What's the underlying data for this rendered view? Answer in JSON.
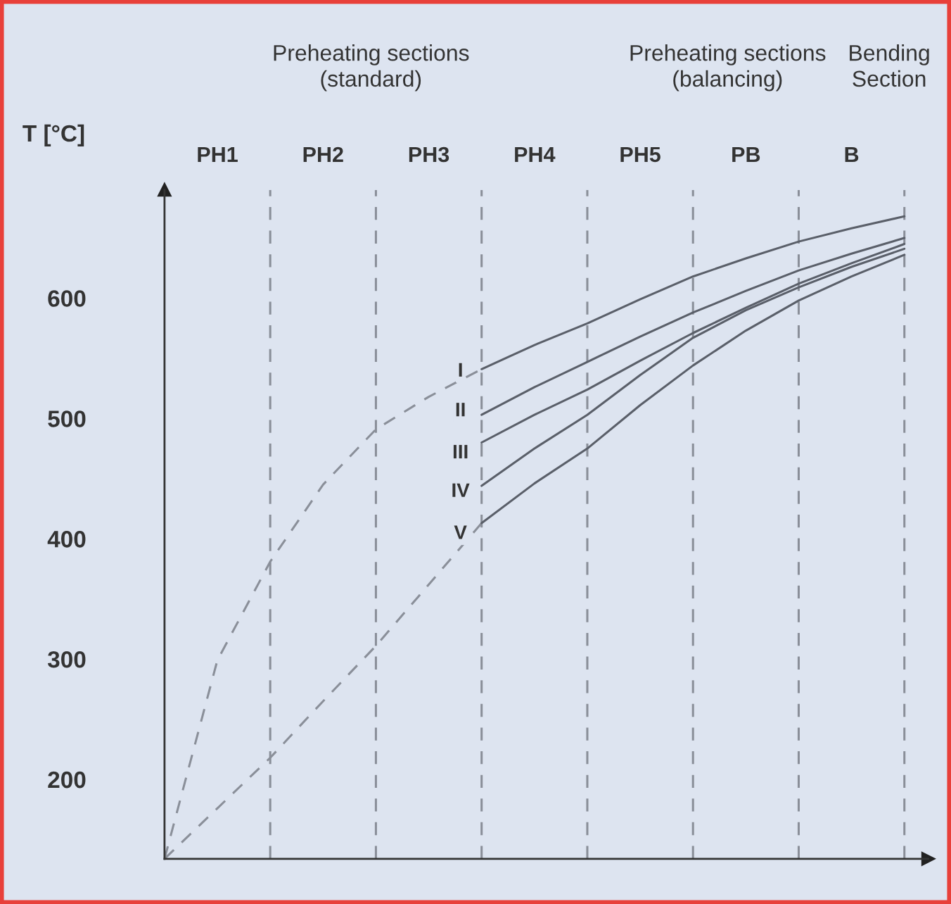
{
  "chart_data": {
    "type": "line",
    "ylabel": "T [°C]",
    "categories": [
      null,
      "PH1",
      null,
      "PH2",
      null,
      "PH3",
      null,
      "PH4",
      null,
      "PH5",
      null,
      "PB",
      null,
      "B",
      null
    ],
    "series": [
      {
        "line_style": "dashed",
        "color": "#8a8f99",
        "values": [
          134,
          299,
          381,
          445,
          491,
          518,
          541,
          null,
          null,
          null,
          null,
          null,
          null,
          null,
          null
        ]
      },
      {
        "line_style": "dashed",
        "color": "#8a8f99",
        "values": [
          134,
          176,
          218,
          265,
          311,
          362,
          413,
          null,
          null,
          null,
          null,
          null,
          null,
          null,
          null
        ]
      },
      {
        "line_style": "solid",
        "color": "#5a5f69",
        "values": [
          null,
          null,
          null,
          null,
          null,
          null,
          541,
          561,
          579,
          599,
          618,
          633,
          647,
          658,
          668
        ]
      },
      {
        "line_style": "solid",
        "color": "#5a5f69",
        "values": [
          null,
          null,
          null,
          null,
          null,
          null,
          503,
          526,
          547,
          568,
          588,
          606,
          623,
          637,
          650
        ]
      },
      {
        "line_style": "solid",
        "color": "#5a5f69",
        "values": [
          null,
          null,
          null,
          null,
          null,
          null,
          480,
          503,
          524,
          548,
          571,
          592,
          612,
          629,
          645
        ]
      },
      {
        "line_style": "solid",
        "color": "#5a5f69",
        "values": [
          null,
          null,
          null,
          null,
          null,
          null,
          444,
          475,
          503,
          536,
          567,
          590,
          609,
          626,
          641
        ]
      },
      {
        "line_style": "solid",
        "color": "#5a5f69",
        "values": [
          null,
          null,
          null,
          null,
          null,
          null,
          413,
          446,
          475,
          511,
          544,
          573,
          598,
          618,
          636
        ]
      }
    ],
    "ylim": [
      134,
      690
    ],
    "yticks": [
      200,
      300,
      400,
      500,
      600
    ],
    "grid": "x",
    "annotations": [
      "Preheating sections\n(standard)",
      "Preheating sections\n(balancing)",
      "Bending\nSection",
      "I",
      "II",
      "III",
      "IV",
      "V"
    ]
  }
}
